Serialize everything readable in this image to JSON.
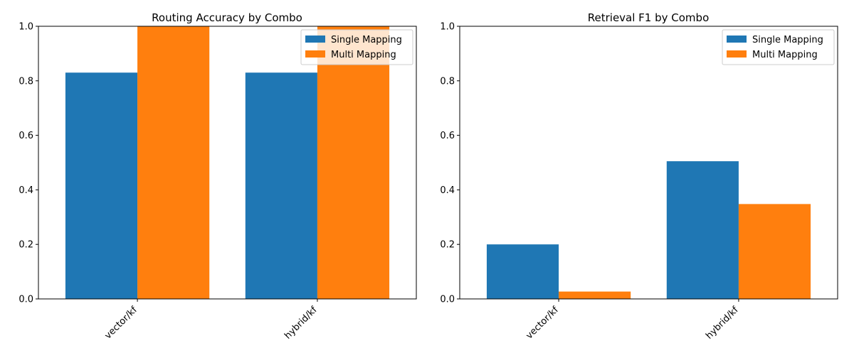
{
  "chart_data": [
    {
      "type": "bar",
      "title": "Routing Accuracy by Combo",
      "xlabel": "",
      "ylabel": "",
      "categories": [
        "vector/kf",
        "hybrid/kf"
      ],
      "series": [
        {
          "name": "Single Mapping",
          "color": "#1f77b4",
          "values": [
            0.83,
            0.83
          ]
        },
        {
          "name": "Multi Mapping",
          "color": "#ff7f0e",
          "values": [
            1.0,
            1.0
          ]
        }
      ],
      "ylim": [
        0,
        1.0
      ],
      "yticks": [
        "0.0",
        "0.2",
        "0.4",
        "0.6",
        "0.8",
        "1.0"
      ],
      "legend": "top-right",
      "grid": false
    },
    {
      "type": "bar",
      "title": "Retrieval F1 by Combo",
      "xlabel": "",
      "ylabel": "",
      "categories": [
        "vector/kf",
        "hybrid/kf"
      ],
      "series": [
        {
          "name": "Single Mapping",
          "color": "#1f77b4",
          "values": [
            0.2,
            0.505
          ]
        },
        {
          "name": "Multi Mapping",
          "color": "#ff7f0e",
          "values": [
            0.027,
            0.348
          ]
        }
      ],
      "ylim": [
        0,
        1.0
      ],
      "yticks": [
        "0.0",
        "0.2",
        "0.4",
        "0.6",
        "0.8",
        "1.0"
      ],
      "legend": "top-right",
      "grid": false
    }
  ]
}
